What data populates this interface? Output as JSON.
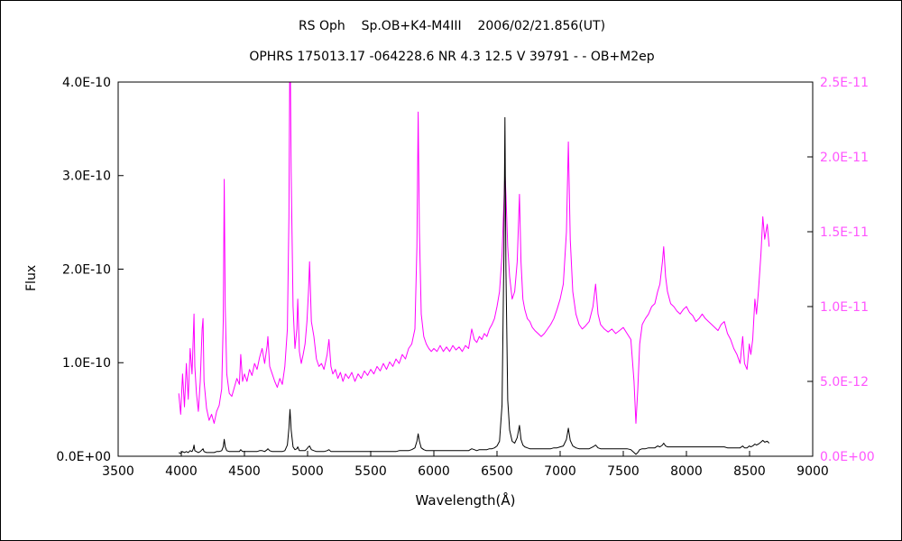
{
  "chart_data": {
    "type": "line",
    "title_line1": "RS Oph    Sp.OB+K4-M4III    2006/02/21.856(UT)",
    "title_line2": "OPHRS 175013.17 -064228.6 NR 4.3 12.5 V 39791 - - OB+M2ep",
    "xlabel": "Wavelength(Å)",
    "ylabel_left": "Flux",
    "grid": false,
    "legend": "none",
    "xlim": [
      3500,
      9000
    ],
    "x_ticks": [
      3500,
      4000,
      4500,
      5000,
      5500,
      6000,
      6500,
      7000,
      7500,
      8000,
      8500,
      9000
    ],
    "left_axis": {
      "unit": "1e-10",
      "lim": [
        0,
        4.0
      ],
      "ticks": [
        0,
        1,
        2,
        3,
        4
      ],
      "tick_labels": [
        "0.0E+00",
        "1.0E-10",
        "2.0E-10",
        "3.0E-10",
        "4.0E-10"
      ],
      "color": "#000000"
    },
    "right_axis": {
      "unit": "1e-11",
      "lim": [
        0,
        2.5
      ],
      "ticks": [
        0,
        0.5,
        1.0,
        1.5,
        2.0,
        2.5
      ],
      "tick_labels": [
        "0.0E+00",
        "5.0E-12",
        "1.0E-11",
        "1.5E-11",
        "2.0E-11",
        "2.5E-11"
      ],
      "color": "#ff55ff"
    },
    "x": [
      3980,
      3995,
      4010,
      4025,
      4040,
      4055,
      4070,
      4085,
      4095,
      4101,
      4107,
      4120,
      4135,
      4150,
      4165,
      4172,
      4180,
      4200,
      4220,
      4240,
      4260,
      4280,
      4300,
      4320,
      4332,
      4340,
      4348,
      4360,
      4380,
      4400,
      4420,
      4440,
      4460,
      4471,
      4485,
      4500,
      4520,
      4540,
      4560,
      4580,
      4600,
      4620,
      4640,
      4660,
      4680,
      4686,
      4700,
      4720,
      4740,
      4760,
      4780,
      4800,
      4820,
      4840,
      4852,
      4861,
      4870,
      4885,
      4900,
      4915,
      4922,
      4935,
      4950,
      4965,
      4980,
      4995,
      5007,
      5016,
      5030,
      5050,
      5070,
      5090,
      5110,
      5130,
      5155,
      5169,
      5185,
      5200,
      5220,
      5240,
      5260,
      5280,
      5300,
      5325,
      5350,
      5375,
      5400,
      5425,
      5450,
      5475,
      5500,
      5525,
      5550,
      5575,
      5600,
      5625,
      5650,
      5675,
      5700,
      5725,
      5750,
      5775,
      5800,
      5825,
      5850,
      5866,
      5876,
      5886,
      5900,
      5920,
      5940,
      5960,
      5980,
      6000,
      6025,
      6050,
      6075,
      6100,
      6125,
      6150,
      6175,
      6200,
      6225,
      6250,
      6275,
      6300,
      6320,
      6340,
      6360,
      6380,
      6400,
      6420,
      6440,
      6460,
      6480,
      6500,
      6520,
      6540,
      6555,
      6563,
      6571,
      6585,
      6600,
      6620,
      6640,
      6660,
      6678,
      6690,
      6705,
      6720,
      6740,
      6760,
      6780,
      6800,
      6825,
      6850,
      6875,
      6900,
      6925,
      6950,
      6975,
      7000,
      7025,
      7050,
      7065,
      7080,
      7100,
      7125,
      7150,
      7175,
      7200,
      7230,
      7260,
      7281,
      7300,
      7320,
      7350,
      7380,
      7410,
      7440,
      7470,
      7500,
      7530,
      7560,
      7585,
      7600,
      7615,
      7630,
      7650,
      7675,
      7700,
      7725,
      7750,
      7772,
      7790,
      7810,
      7820,
      7835,
      7850,
      7875,
      7900,
      7925,
      7950,
      7975,
      8000,
      8025,
      8050,
      8075,
      8100,
      8125,
      8150,
      8175,
      8200,
      8225,
      8250,
      8275,
      8300,
      8325,
      8350,
      8375,
      8400,
      8425,
      8446,
      8460,
      8480,
      8498,
      8510,
      8525,
      8542,
      8555,
      8570,
      8590,
      8605,
      8620,
      8640,
      8655
    ],
    "series": [
      {
        "name": "spectrum-magenta",
        "axis": "right",
        "color": "#ff00ff",
        "values": [
          0.42,
          0.28,
          0.55,
          0.33,
          0.62,
          0.38,
          0.72,
          0.55,
          0.8,
          0.95,
          0.6,
          0.42,
          0.3,
          0.5,
          0.85,
          0.92,
          0.5,
          0.32,
          0.24,
          0.28,
          0.22,
          0.3,
          0.34,
          0.45,
          0.9,
          1.85,
          1.0,
          0.55,
          0.42,
          0.4,
          0.46,
          0.52,
          0.48,
          0.68,
          0.5,
          0.55,
          0.5,
          0.58,
          0.54,
          0.62,
          0.58,
          0.66,
          0.72,
          0.62,
          0.74,
          0.8,
          0.6,
          0.55,
          0.5,
          0.46,
          0.52,
          0.48,
          0.6,
          0.85,
          1.6,
          2.9,
          1.9,
          1.0,
          0.72,
          0.85,
          1.05,
          0.7,
          0.62,
          0.68,
          0.75,
          0.9,
          1.1,
          1.3,
          0.9,
          0.8,
          0.65,
          0.6,
          0.62,
          0.58,
          0.68,
          0.78,
          0.6,
          0.55,
          0.58,
          0.52,
          0.56,
          0.5,
          0.55,
          0.52,
          0.56,
          0.5,
          0.55,
          0.52,
          0.57,
          0.54,
          0.58,
          0.55,
          0.6,
          0.57,
          0.62,
          0.58,
          0.63,
          0.6,
          0.65,
          0.62,
          0.68,
          0.65,
          0.72,
          0.75,
          0.85,
          1.4,
          2.3,
          1.5,
          0.95,
          0.8,
          0.75,
          0.72,
          0.7,
          0.72,
          0.7,
          0.74,
          0.7,
          0.73,
          0.7,
          0.74,
          0.71,
          0.73,
          0.7,
          0.74,
          0.72,
          0.85,
          0.78,
          0.76,
          0.8,
          0.78,
          0.82,
          0.8,
          0.85,
          0.88,
          0.92,
          1.0,
          1.1,
          1.35,
          1.7,
          1.9,
          1.75,
          1.4,
          1.2,
          1.05,
          1.1,
          1.3,
          1.75,
          1.3,
          1.05,
          0.98,
          0.92,
          0.9,
          0.86,
          0.84,
          0.82,
          0.8,
          0.82,
          0.85,
          0.88,
          0.92,
          0.98,
          1.05,
          1.15,
          1.5,
          2.1,
          1.45,
          1.1,
          0.95,
          0.88,
          0.85,
          0.87,
          0.9,
          1.0,
          1.15,
          0.95,
          0.88,
          0.85,
          0.83,
          0.85,
          0.82,
          0.84,
          0.86,
          0.82,
          0.78,
          0.5,
          0.22,
          0.45,
          0.75,
          0.88,
          0.92,
          0.95,
          1.0,
          1.02,
          1.1,
          1.15,
          1.3,
          1.4,
          1.2,
          1.1,
          1.02,
          1.0,
          0.97,
          0.95,
          0.98,
          1.0,
          0.96,
          0.94,
          0.9,
          0.92,
          0.95,
          0.92,
          0.9,
          0.88,
          0.86,
          0.84,
          0.88,
          0.9,
          0.82,
          0.78,
          0.72,
          0.68,
          0.62,
          0.8,
          0.62,
          0.58,
          0.75,
          0.68,
          0.78,
          1.05,
          0.95,
          1.1,
          1.35,
          1.6,
          1.45,
          1.55,
          1.4
        ]
      },
      {
        "name": "spectrum-black",
        "axis": "left",
        "color": "#000000",
        "values": [
          0.04,
          0.03,
          0.05,
          0.04,
          0.05,
          0.04,
          0.06,
          0.05,
          0.08,
          0.12,
          0.06,
          0.05,
          0.04,
          0.05,
          0.07,
          0.08,
          0.05,
          0.04,
          0.04,
          0.04,
          0.04,
          0.05,
          0.05,
          0.06,
          0.1,
          0.18,
          0.1,
          0.06,
          0.05,
          0.05,
          0.05,
          0.05,
          0.05,
          0.07,
          0.05,
          0.05,
          0.05,
          0.05,
          0.05,
          0.05,
          0.05,
          0.06,
          0.06,
          0.05,
          0.07,
          0.08,
          0.06,
          0.05,
          0.05,
          0.05,
          0.05,
          0.05,
          0.06,
          0.12,
          0.3,
          0.5,
          0.28,
          0.1,
          0.07,
          0.08,
          0.1,
          0.06,
          0.06,
          0.06,
          0.06,
          0.08,
          0.1,
          0.11,
          0.07,
          0.06,
          0.05,
          0.05,
          0.05,
          0.05,
          0.06,
          0.07,
          0.05,
          0.05,
          0.05,
          0.05,
          0.05,
          0.05,
          0.05,
          0.05,
          0.05,
          0.05,
          0.05,
          0.05,
          0.05,
          0.05,
          0.05,
          0.05,
          0.05,
          0.05,
          0.05,
          0.05,
          0.05,
          0.05,
          0.05,
          0.06,
          0.06,
          0.06,
          0.06,
          0.07,
          0.09,
          0.16,
          0.24,
          0.16,
          0.09,
          0.07,
          0.06,
          0.06,
          0.06,
          0.06,
          0.06,
          0.06,
          0.06,
          0.06,
          0.06,
          0.06,
          0.06,
          0.06,
          0.06,
          0.06,
          0.06,
          0.08,
          0.07,
          0.06,
          0.07,
          0.07,
          0.07,
          0.07,
          0.08,
          0.08,
          0.09,
          0.11,
          0.16,
          0.55,
          2.2,
          3.62,
          2.0,
          0.6,
          0.28,
          0.16,
          0.14,
          0.2,
          0.33,
          0.18,
          0.12,
          0.1,
          0.09,
          0.08,
          0.08,
          0.08,
          0.08,
          0.08,
          0.08,
          0.08,
          0.08,
          0.09,
          0.09,
          0.1,
          0.11,
          0.18,
          0.3,
          0.17,
          0.11,
          0.09,
          0.08,
          0.08,
          0.08,
          0.08,
          0.1,
          0.12,
          0.09,
          0.08,
          0.08,
          0.08,
          0.08,
          0.08,
          0.08,
          0.08,
          0.08,
          0.07,
          0.04,
          0.02,
          0.04,
          0.07,
          0.08,
          0.08,
          0.09,
          0.09,
          0.09,
          0.11,
          0.1,
          0.12,
          0.14,
          0.11,
          0.1,
          0.1,
          0.1,
          0.1,
          0.1,
          0.1,
          0.1,
          0.1,
          0.1,
          0.1,
          0.1,
          0.1,
          0.1,
          0.1,
          0.1,
          0.1,
          0.1,
          0.1,
          0.1,
          0.09,
          0.09,
          0.09,
          0.09,
          0.09,
          0.11,
          0.09,
          0.09,
          0.11,
          0.1,
          0.11,
          0.13,
          0.12,
          0.13,
          0.15,
          0.17,
          0.15,
          0.16,
          0.14
        ]
      }
    ]
  },
  "colors": {
    "frame": "#000000",
    "background": "#ffffff"
  }
}
